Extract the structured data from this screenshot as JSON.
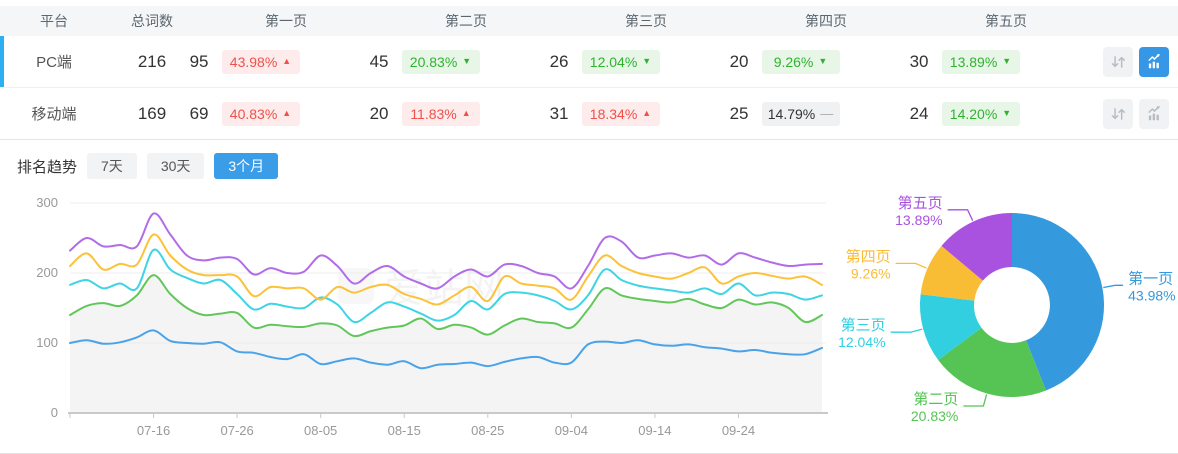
{
  "glyphs": {
    "up": "▲",
    "down": "▼",
    "flat": "—"
  },
  "icons": {
    "sort": "sort-arrows-icon",
    "trend": "trend-chart-icon"
  },
  "watermark": "爱站网",
  "colors": {
    "accent_blue": "#3b9de8",
    "active_row_indicator": "#2cb0f2",
    "badge_up_text": "#f0504a",
    "badge_up_bg": "#fdeceb",
    "badge_down_text": "#2fb32f",
    "badge_down_bg": "#e8f6e8",
    "badge_flat_bg": "#f0f1f2",
    "series": [
      "#4aa3e8",
      "#62c75a",
      "#3fd4e4",
      "#fbc23a",
      "#b26ce8"
    ],
    "donut": [
      "#3499dd",
      "#55c455",
      "#32cfe0",
      "#f9bc35",
      "#a952e0"
    ]
  },
  "table": {
    "headers": {
      "platform": "平台",
      "total": "总词数",
      "pages": [
        "第一页",
        "第二页",
        "第三页",
        "第四页",
        "第五页"
      ]
    },
    "rows": [
      {
        "platform": "PC端",
        "total": "216",
        "active": true,
        "pages": [
          {
            "count": "95",
            "pct": "43.98%",
            "trend": "up",
            "tone": "red"
          },
          {
            "count": "45",
            "pct": "20.83%",
            "trend": "down",
            "tone": "green"
          },
          {
            "count": "26",
            "pct": "12.04%",
            "trend": "down",
            "tone": "green"
          },
          {
            "count": "20",
            "pct": "9.26%",
            "trend": "down",
            "tone": "green"
          },
          {
            "count": "30",
            "pct": "13.89%",
            "trend": "down",
            "tone": "green"
          }
        ]
      },
      {
        "platform": "移动端",
        "total": "169",
        "active": false,
        "pages": [
          {
            "count": "69",
            "pct": "40.83%",
            "trend": "up",
            "tone": "red"
          },
          {
            "count": "20",
            "pct": "11.83%",
            "trend": "up",
            "tone": "red"
          },
          {
            "count": "31",
            "pct": "18.34%",
            "trend": "up",
            "tone": "red"
          },
          {
            "count": "25",
            "pct": "14.79%",
            "trend": "flat",
            "tone": "gray"
          },
          {
            "count": "24",
            "pct": "14.20%",
            "trend": "down",
            "tone": "green"
          }
        ]
      }
    ]
  },
  "trend_section": {
    "title": "排名趋势",
    "tabs": [
      {
        "label": "7天",
        "active": false
      },
      {
        "label": "30天",
        "active": false
      },
      {
        "label": "3个月",
        "active": true
      }
    ]
  },
  "chart_data": [
    {
      "type": "line",
      "title": "排名趋势（3个月）",
      "stacked_cumulative": true,
      "area_fill_under": "第二页",
      "grid": true,
      "ylim": [
        0,
        300
      ],
      "yticks": [
        0,
        100,
        200,
        300
      ],
      "x_ticks": [
        "07-16",
        "07-26",
        "08-05",
        "08-15",
        "08-25",
        "09-04",
        "09-14",
        "09-24"
      ],
      "x": [
        "07-06",
        "07-08",
        "07-10",
        "07-12",
        "07-14",
        "07-16",
        "07-18",
        "07-20",
        "07-22",
        "07-24",
        "07-26",
        "07-28",
        "07-30",
        "08-01",
        "08-03",
        "08-05",
        "08-07",
        "08-09",
        "08-11",
        "08-13",
        "08-15",
        "08-17",
        "08-19",
        "08-21",
        "08-23",
        "08-25",
        "08-27",
        "08-29",
        "08-31",
        "09-02",
        "09-04",
        "09-06",
        "09-08",
        "09-10",
        "09-12",
        "09-14",
        "09-16",
        "09-18",
        "09-20",
        "09-22",
        "09-24",
        "09-26",
        "09-28",
        "09-30",
        "10-02",
        "10-04"
      ],
      "series": [
        {
          "name": "第一页",
          "color": "#4aa3e8",
          "values": [
            100,
            104,
            99,
            101,
            108,
            118,
            103,
            100,
            99,
            101,
            88,
            86,
            80,
            77,
            84,
            70,
            74,
            78,
            72,
            69,
            74,
            64,
            69,
            70,
            72,
            67,
            73,
            78,
            80,
            72,
            72,
            98,
            102,
            100,
            104,
            98,
            96,
            98,
            94,
            92,
            88,
            90,
            86,
            84,
            84,
            93
          ]
        },
        {
          "name": "第二页",
          "color": "#62c75a",
          "values": [
            140,
            153,
            157,
            153,
            168,
            197,
            170,
            150,
            140,
            142,
            143,
            122,
            126,
            124,
            123,
            128,
            125,
            110,
            117,
            122,
            125,
            135,
            120,
            126,
            122,
            112,
            125,
            135,
            130,
            128,
            122,
            148,
            178,
            168,
            163,
            160,
            158,
            163,
            155,
            150,
            162,
            155,
            158,
            150,
            130,
            140
          ]
        },
        {
          "name": "第三页",
          "color": "#3fd4e4",
          "values": [
            183,
            190,
            178,
            185,
            178,
            233,
            205,
            193,
            185,
            190,
            170,
            148,
            156,
            152,
            150,
            165,
            155,
            130,
            143,
            158,
            152,
            142,
            132,
            140,
            160,
            148,
            170,
            172,
            168,
            160,
            148,
            168,
            205,
            190,
            182,
            178,
            175,
            172,
            178,
            170,
            185,
            168,
            172,
            170,
            162,
            168
          ]
        },
        {
          "name": "第四页",
          "color": "#fbc23a",
          "values": [
            210,
            228,
            205,
            213,
            212,
            255,
            225,
            205,
            197,
            197,
            195,
            167,
            180,
            178,
            178,
            162,
            180,
            172,
            180,
            183,
            170,
            163,
            155,
            168,
            180,
            160,
            195,
            185,
            182,
            178,
            162,
            195,
            225,
            210,
            200,
            195,
            192,
            200,
            208,
            185,
            195,
            200,
            196,
            192,
            195,
            183
          ]
        },
        {
          "name": "第五页",
          "color": "#b26ce8",
          "values": [
            232,
            250,
            238,
            240,
            238,
            285,
            255,
            225,
            218,
            222,
            220,
            198,
            207,
            200,
            202,
            225,
            210,
            185,
            200,
            210,
            195,
            185,
            178,
            195,
            205,
            195,
            212,
            210,
            200,
            195,
            178,
            210,
            250,
            245,
            222,
            225,
            228,
            222,
            225,
            212,
            228,
            222,
            215,
            210,
            212,
            213
          ]
        }
      ]
    },
    {
      "type": "donut",
      "slices": [
        {
          "label": "第一页",
          "value": 43.98,
          "pct": "43.98%",
          "color": "#3499dd"
        },
        {
          "label": "第二页",
          "value": 20.83,
          "pct": "20.83%",
          "color": "#55c455"
        },
        {
          "label": "第三页",
          "value": 12.04,
          "pct": "12.04%",
          "color": "#32cfe0"
        },
        {
          "label": "第四页",
          "value": 9.26,
          "pct": "9.26%",
          "color": "#f9bc35"
        },
        {
          "label": "第五页",
          "value": 13.89,
          "pct": "13.89%",
          "color": "#a952e0"
        }
      ]
    }
  ]
}
